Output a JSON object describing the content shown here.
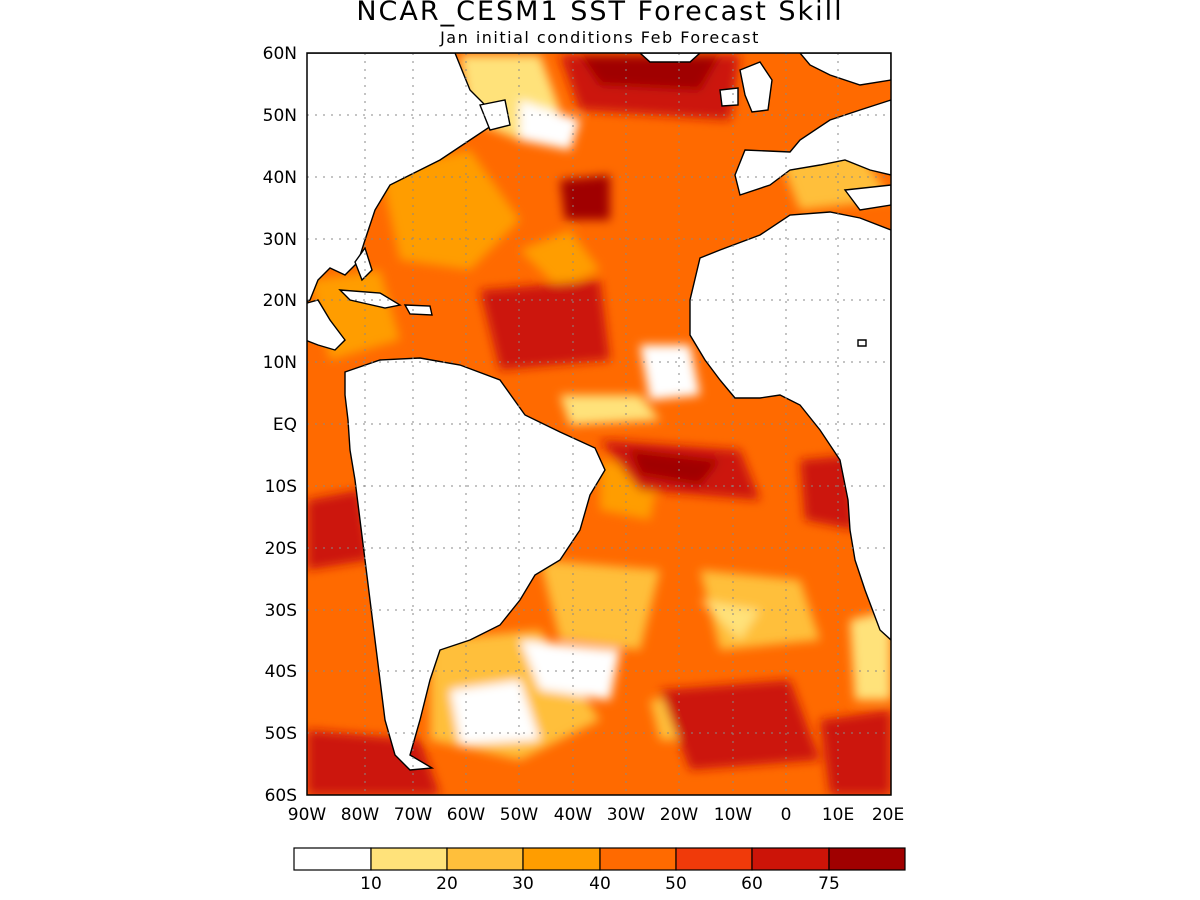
{
  "title": "NCAR_CESM1  SST Forecast Skill",
  "subtitle": "Jan initial conditions  Feb Forecast",
  "lat_labels": [
    "60N",
    "50N",
    "40N",
    "30N",
    "20N",
    "10N",
    "EQ",
    "10S",
    "20S",
    "30S",
    "40S",
    "50S",
    "60S"
  ],
  "lon_labels": [
    "90W",
    "80W",
    "70W",
    "60W",
    "50W",
    "40W",
    "30W",
    "20W",
    "10W",
    "0",
    "10E",
    "20E"
  ],
  "colorbar": {
    "labels": [
      "10",
      "20",
      "30",
      "40",
      "50",
      "60",
      "75"
    ],
    "colors": [
      "#ffffff",
      "#ffe27a",
      "#ffbf3b",
      "#ff9d00",
      "#ff6a00",
      "#f03a0a",
      "#cc1408",
      "#a00000"
    ]
  },
  "map_extent": {
    "lon": [
      -90,
      20
    ],
    "lat": [
      -60,
      60
    ]
  }
}
